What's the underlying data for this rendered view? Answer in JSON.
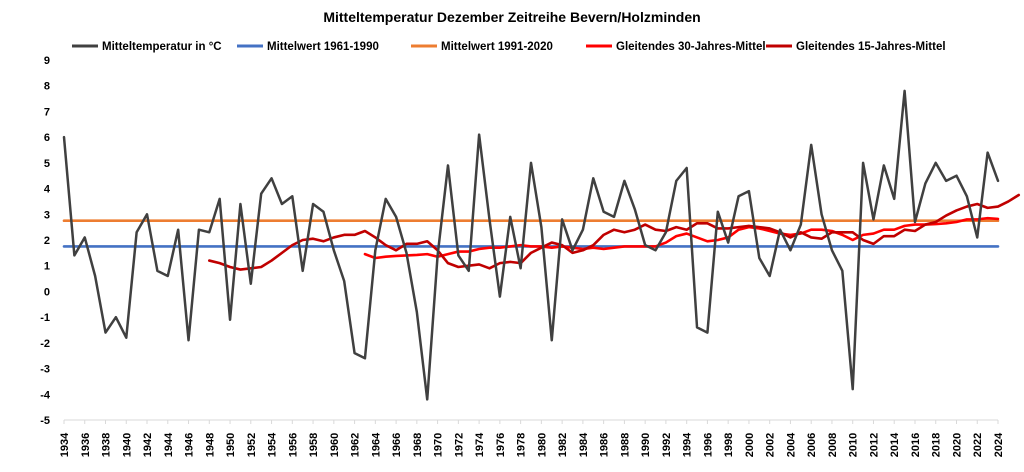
{
  "chart_data": {
    "type": "line",
    "title": "Mitteltemperatur Dezember Zeitreihe Bevern/Holzminden",
    "xlabel": "",
    "ylabel": "",
    "x_range": [
      1934,
      2024
    ],
    "x_tick_labels": [
      "1934",
      "1936",
      "1938",
      "1940",
      "1942",
      "1944",
      "1946",
      "1948",
      "1950",
      "1952",
      "1954",
      "1956",
      "1958",
      "1960",
      "1962",
      "1964",
      "1966",
      "1968",
      "1970",
      "1972",
      "1974",
      "1976",
      "1978",
      "1980",
      "1982",
      "1984",
      "1986",
      "1988",
      "1990",
      "1992",
      "1994",
      "1996",
      "1998",
      "2000",
      "2002",
      "2004",
      "2006",
      "2008",
      "2010",
      "2012",
      "2014",
      "2016",
      "2018",
      "2020",
      "2022",
      "2024"
    ],
    "ylim": [
      -5,
      9
    ],
    "y_tick_labels": [
      "-5",
      "-4",
      "-3",
      "-2",
      "-1",
      "0",
      "1",
      "2",
      "3",
      "4",
      "5",
      "6",
      "7",
      "8",
      "9"
    ],
    "grid": false,
    "legend_position": "top",
    "series": [
      {
        "name": "Mitteltemperatur in °C",
        "color": "#404040",
        "x_start": 1934,
        "values": [
          6.0,
          1.4,
          2.1,
          0.6,
          -1.6,
          -1.0,
          -1.8,
          2.3,
          3.0,
          0.8,
          0.6,
          2.4,
          -1.9,
          2.4,
          2.3,
          3.6,
          -1.1,
          3.4,
          0.3,
          3.8,
          4.4,
          3.4,
          3.7,
          0.8,
          3.4,
          3.1,
          1.6,
          0.4,
          -2.4,
          -2.6,
          1.6,
          3.6,
          2.9,
          1.5,
          -0.8,
          -4.2,
          1.4,
          4.9,
          1.4,
          0.8,
          6.1,
          2.8,
          -0.2,
          2.9,
          0.9,
          5.0,
          2.5,
          -1.9,
          2.8,
          1.6,
          2.4,
          4.4,
          3.1,
          2.9,
          4.3,
          3.2,
          1.8,
          1.6,
          2.3,
          4.3,
          4.8,
          -1.4,
          -1.6,
          3.1,
          1.9,
          3.7,
          3.9,
          1.3,
          0.6,
          2.4,
          1.6,
          2.6,
          5.7,
          3.0,
          1.6,
          0.8,
          -3.8,
          5.0,
          2.8,
          4.9,
          3.6,
          7.8,
          2.7,
          4.2,
          5.0,
          4.3,
          4.5,
          3.7,
          2.1,
          5.4,
          4.3
        ]
      },
      {
        "name": "Mittelwert 1961-1990",
        "color": "#4472c4",
        "x": [
          1934,
          2024
        ],
        "values": [
          1.75,
          1.75
        ]
      },
      {
        "name": "Mittelwert 1991-2020",
        "color": "#ed7d31",
        "x": [
          1934,
          2024
        ],
        "values": [
          2.75,
          2.75
        ]
      },
      {
        "name": "Gleitendes 30-Jahres-Mittel",
        "color": "#ff0000",
        "x_start": 1963,
        "values": [
          1.45,
          1.3,
          1.35,
          1.38,
          1.4,
          1.42,
          1.45,
          1.35,
          1.45,
          1.55,
          1.55,
          1.65,
          1.7,
          1.7,
          1.75,
          1.8,
          1.75,
          1.75,
          1.7,
          1.75,
          1.7,
          1.65,
          1.7,
          1.65,
          1.7,
          1.75,
          1.75,
          1.75,
          1.75,
          1.9,
          2.15,
          2.25,
          2.1,
          1.95,
          2.0,
          2.1,
          2.4,
          2.5,
          2.45,
          2.35,
          2.25,
          2.2,
          2.25,
          2.4,
          2.4,
          2.35,
          2.2,
          2.0,
          2.2,
          2.25,
          2.4,
          2.4,
          2.55,
          2.6,
          2.6,
          2.62,
          2.65,
          2.7,
          2.8,
          2.8,
          2.85,
          2.82
        ]
      },
      {
        "name": "Gleitendes 15-Jahres-Mittel",
        "color": "#c00000",
        "x_start": 1948,
        "values": [
          1.2,
          1.1,
          0.95,
          0.85,
          0.9,
          0.95,
          1.2,
          1.5,
          1.8,
          2.0,
          2.05,
          1.95,
          2.1,
          2.2,
          2.2,
          2.35,
          2.1,
          1.8,
          1.6,
          1.85,
          1.85,
          1.95,
          1.6,
          1.1,
          0.95,
          1.0,
          1.05,
          0.9,
          1.1,
          1.15,
          1.1,
          1.5,
          1.7,
          1.9,
          1.8,
          1.5,
          1.6,
          1.8,
          2.2,
          2.4,
          2.3,
          2.4,
          2.6,
          2.4,
          2.35,
          2.5,
          2.4,
          2.65,
          2.65,
          2.45,
          2.45,
          2.5,
          2.55,
          2.5,
          2.45,
          2.3,
          2.1,
          2.3,
          2.1,
          2.05,
          2.3,
          2.3,
          2.3,
          2.0,
          1.85,
          2.15,
          2.15,
          2.4,
          2.35,
          2.6,
          2.7,
          2.95,
          3.15,
          3.3,
          3.4,
          3.25,
          3.3,
          3.5,
          3.75
        ]
      }
    ]
  }
}
